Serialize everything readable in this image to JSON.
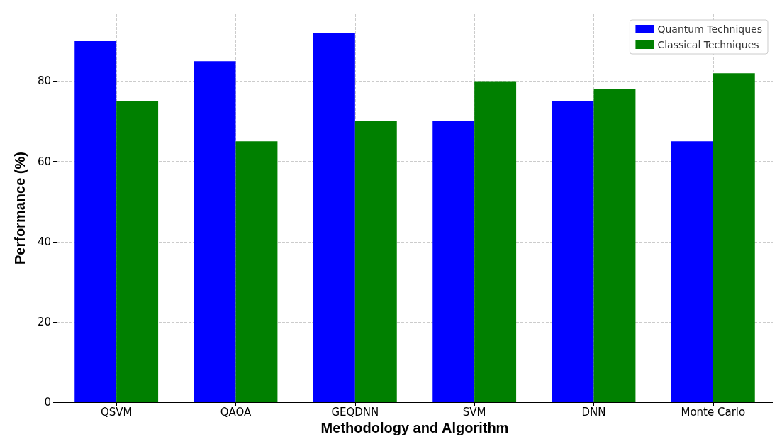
{
  "chart_data": {
    "type": "bar",
    "xlabel": "Methodology and Algorithm",
    "ylabel": "Performance (%)",
    "categories": [
      "QSVM",
      "QAOA",
      "GEQDNN",
      "SVM",
      "DNN",
      "Monte Carlo"
    ],
    "series": [
      {
        "name": "Quantum Techniques",
        "color": "#0000ff",
        "values": [
          90,
          85,
          92,
          70,
          75,
          65
        ]
      },
      {
        "name": "Classical Techniques",
        "color": "#008000",
        "values": [
          75,
          65,
          70,
          80,
          78,
          82
        ]
      }
    ],
    "ylim": [
      0,
      96.7
    ],
    "yticks": [
      0,
      20,
      40,
      60,
      80
    ],
    "grid": true,
    "legend": "top right"
  }
}
